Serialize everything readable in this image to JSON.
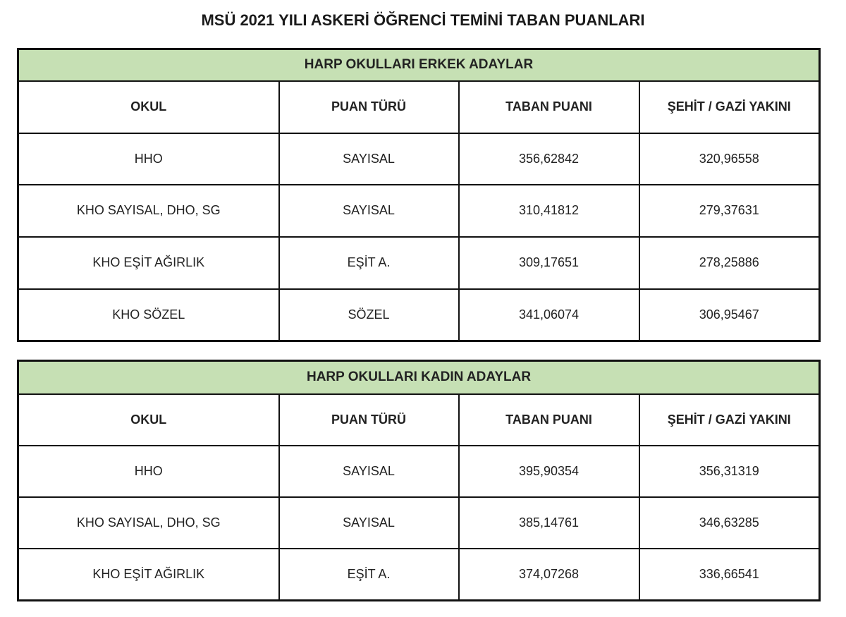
{
  "title": "MSÜ 2021 YILI ASKERİ ÖĞRENCİ TEMİNİ TABAN PUANLARI",
  "header_color": "#c6e0b4",
  "columns": [
    "OKUL",
    "PUAN TÜRÜ",
    "TABAN PUANI",
    "ŞEHİT / GAZİ YAKINI"
  ],
  "tables": [
    {
      "caption": "HARP OKULLARI ERKEK ADAYLAR",
      "rows": [
        [
          "HHO",
          "SAYISAL",
          "356,62842",
          "320,96558"
        ],
        [
          "KHO SAYISAL, DHO, SG",
          "SAYISAL",
          "310,41812",
          "279,37631"
        ],
        [
          "KHO EŞİT AĞIRLIK",
          "EŞİT A.",
          "309,17651",
          "278,25886"
        ],
        [
          "KHO SÖZEL",
          "SÖZEL",
          "341,06074",
          "306,95467"
        ]
      ]
    },
    {
      "caption": "HARP OKULLARI KADIN ADAYLAR",
      "rows": [
        [
          "HHO",
          "SAYISAL",
          "395,90354",
          "356,31319"
        ],
        [
          "KHO SAYISAL, DHO, SG",
          "SAYISAL",
          "385,14761",
          "346,63285"
        ],
        [
          "KHO EŞİT AĞIRLIK",
          "EŞİT A.",
          "374,07268",
          "336,66541"
        ]
      ]
    }
  ]
}
